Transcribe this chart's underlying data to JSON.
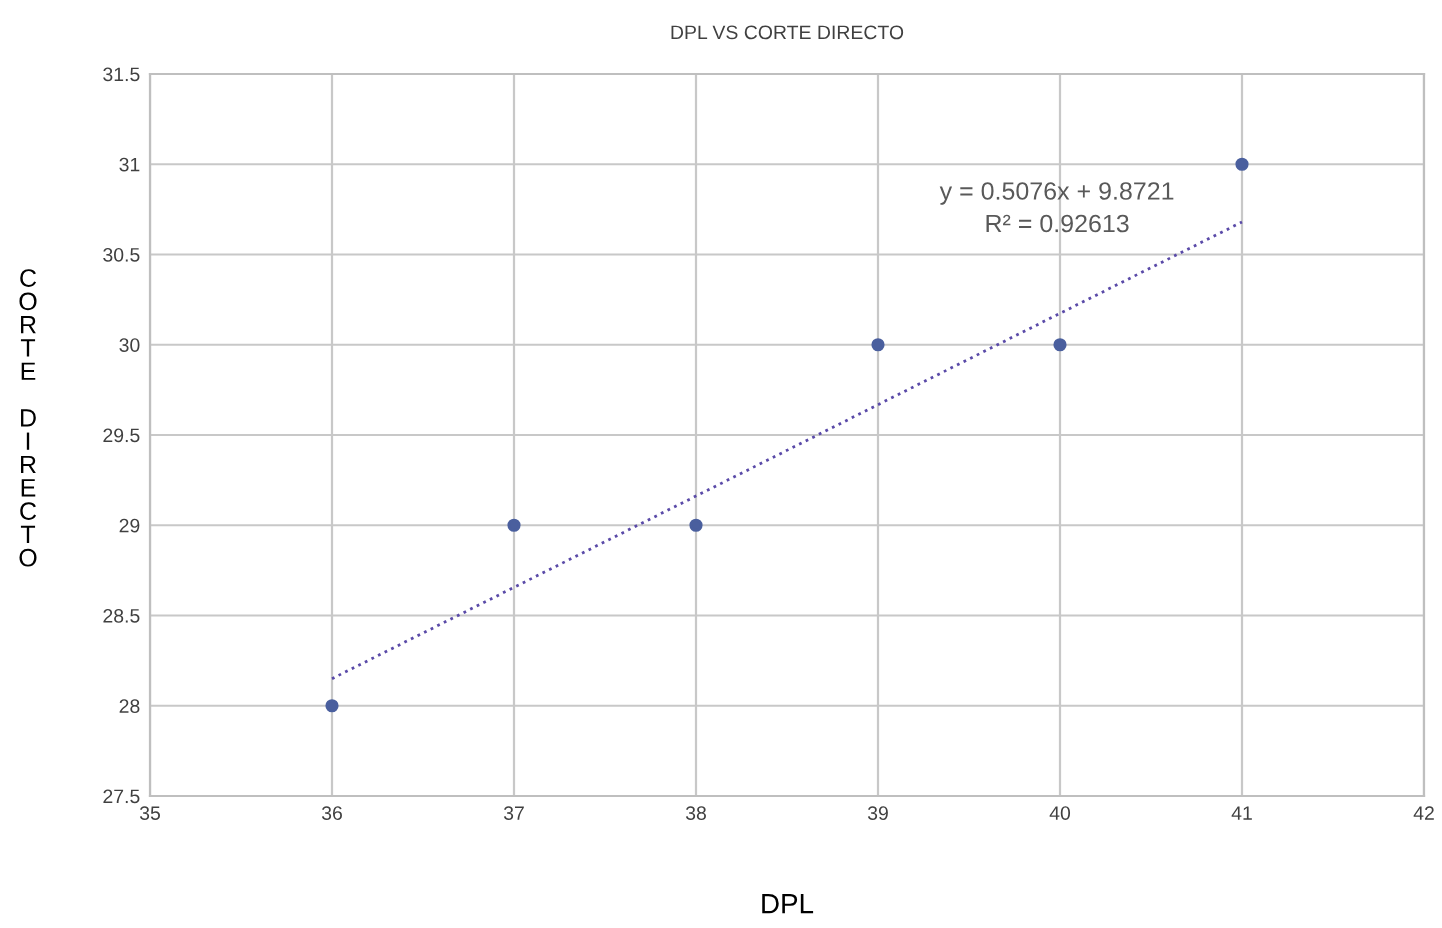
{
  "chart_data": {
    "type": "scatter",
    "title": "DPL VS CORTE DIRECTO",
    "xlabel": "DPL",
    "ylabel": "CORTE DIRECTO",
    "x": [
      36,
      37,
      38,
      39,
      40,
      41
    ],
    "series": [
      {
        "color": "#4a5f9e",
        "values": [
          28,
          29,
          29,
          30,
          30,
          31
        ],
        "marker": "circle"
      },
      {
        "type": "line",
        "color": "#5a4aa8",
        "x": [
          36,
          41
        ],
        "values": [
          28.15,
          30.68
        ],
        "line_style": "dotted",
        "marker": "none"
      }
    ],
    "annotations": [
      "y = 0.5076x + 9.8721",
      "R² = 0.92613"
    ],
    "xlim": [
      35,
      42
    ],
    "xticks": [
      35,
      36,
      37,
      38,
      39,
      40,
      41,
      42
    ],
    "ylim": [
      27.5,
      31.5
    ],
    "yticks": [
      27.5,
      28,
      28.5,
      29,
      29.5,
      30,
      30.5,
      31,
      31.5
    ],
    "grid": true,
    "legend": false
  }
}
